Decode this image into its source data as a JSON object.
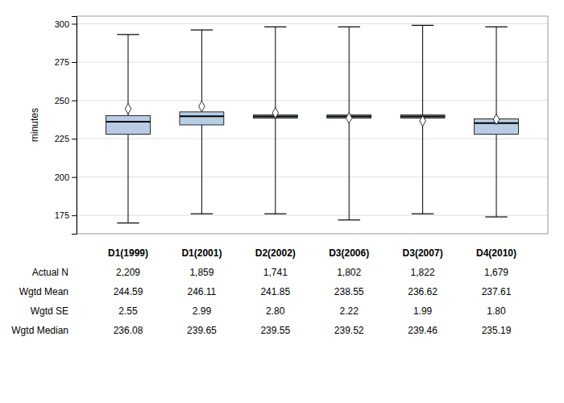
{
  "chart_data": {
    "type": "box",
    "categories": [
      "D1(1999)",
      "D1(2001)",
      "D2(2002)",
      "D3(2006)",
      "D3(2007)",
      "D4(2010)"
    ],
    "boxes": [
      {
        "median": 236.08,
        "q1": 228.0,
        "q3": 240.0,
        "whisker_low": 170.0,
        "whisker_high": 293.0,
        "mean": 244.59
      },
      {
        "median": 239.65,
        "q1": 234.0,
        "q3": 242.5,
        "whisker_low": 176.0,
        "whisker_high": 296.0,
        "mean": 246.11
      },
      {
        "median": 239.55,
        "q1": 238.5,
        "q3": 240.5,
        "whisker_low": 176.0,
        "whisker_high": 298.0,
        "mean": 241.85
      },
      {
        "median": 239.52,
        "q1": 238.5,
        "q3": 240.5,
        "whisker_low": 172.0,
        "whisker_high": 298.0,
        "mean": 238.55
      },
      {
        "median": 239.46,
        "q1": 238.5,
        "q3": 240.5,
        "whisker_low": 176.0,
        "whisker_high": 299.0,
        "mean": 236.62
      },
      {
        "median": 235.19,
        "q1": 228.0,
        "q3": 238.0,
        "whisker_low": 174.0,
        "whisker_high": 298.0,
        "mean": 237.61
      }
    ],
    "color": "#b8cce4",
    "marker": "diamond",
    "ylabel": "minutes",
    "ylim": [
      163,
      305
    ],
    "yticks": [
      175,
      200,
      225,
      250,
      275,
      300
    ],
    "grid": true,
    "tick_labels": "y",
    "table_rows": [
      {
        "label": "Actual N",
        "values": [
          2209,
          1859,
          1741,
          1802,
          1822,
          1679
        ],
        "value_labels": [
          "2,209",
          "1,859",
          "1,741",
          "1,802",
          "1,822",
          "1,679"
        ]
      },
      {
        "label": "Wgtd Mean",
        "values": [
          244.59,
          246.11,
          241.85,
          238.55,
          236.62,
          237.61
        ]
      },
      {
        "label": "Wgtd SE",
        "values": [
          2.55,
          2.99,
          2.8,
          2.22,
          1.99,
          1.8
        ],
        "value_labels": [
          "2.55",
          "2.99",
          "2.80",
          "2.22",
          "1.99",
          "1.80"
        ]
      },
      {
        "label": "Wgtd Median",
        "values": [
          236.08,
          239.65,
          239.55,
          239.52,
          239.46,
          235.19
        ]
      }
    ]
  }
}
